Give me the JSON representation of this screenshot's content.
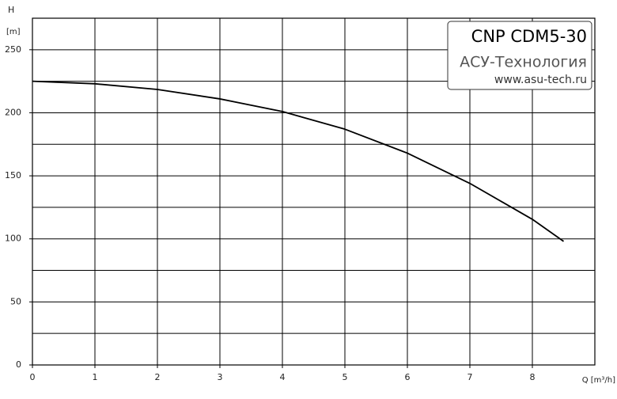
{
  "chart_data": {
    "type": "line",
    "y_label": "H",
    "y_unit": "[m]",
    "x_label": "Q [m³/h]",
    "title": "CNP CDM5-30",
    "subtitle": "АСУ-Технология",
    "source": "www.asu-tech.ru",
    "xlim": [
      0,
      9
    ],
    "xticks": [
      0,
      1,
      2,
      3,
      4,
      5,
      6,
      7,
      8
    ],
    "minor_xticks": [
      9
    ],
    "ylim": [
      0,
      275
    ],
    "yticks": [
      0,
      50,
      100,
      150,
      200,
      250
    ],
    "minor_yticks": [
      25,
      75,
      125,
      175,
      225,
      275
    ],
    "grid": true,
    "series": [
      {
        "color": "#000000",
        "x": [
          0,
          1,
          2,
          3,
          4,
          5,
          6,
          7,
          8,
          8.5
        ],
        "values": [
          225,
          223,
          218.5,
          211,
          201,
          187,
          168,
          144,
          115.5,
          98
        ]
      }
    ]
  }
}
